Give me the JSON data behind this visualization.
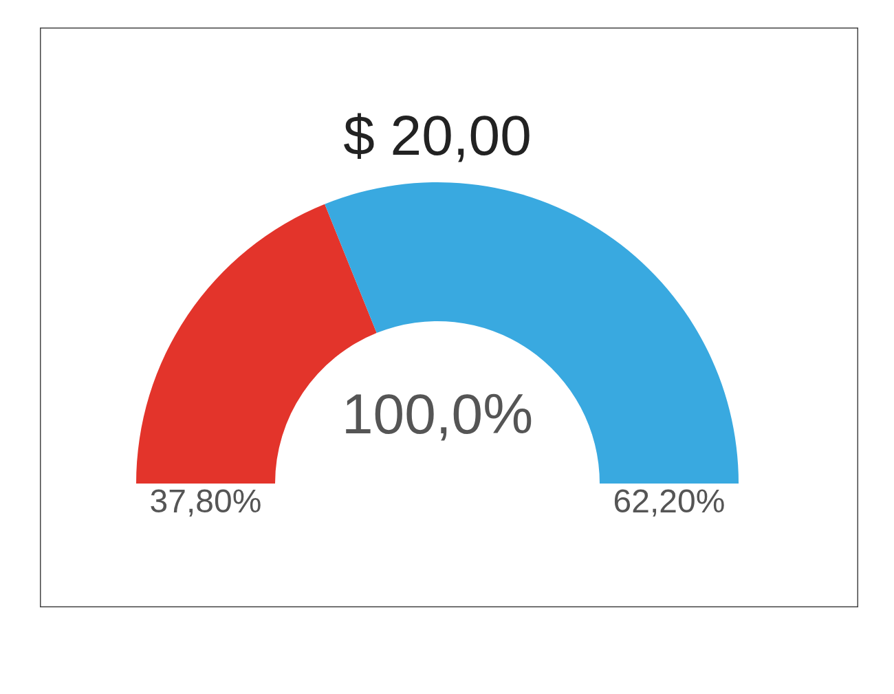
{
  "chart_data": {
    "type": "donut",
    "title": "$ 20,00",
    "categories": [
      null,
      null
    ],
    "values": [
      37.8,
      62.2
    ],
    "colors": [
      "#e3342b",
      "#39a9e0"
    ],
    "value_labels": [
      "37,80%",
      "62,20%"
    ],
    "annotations": [
      "100,0%"
    ]
  }
}
